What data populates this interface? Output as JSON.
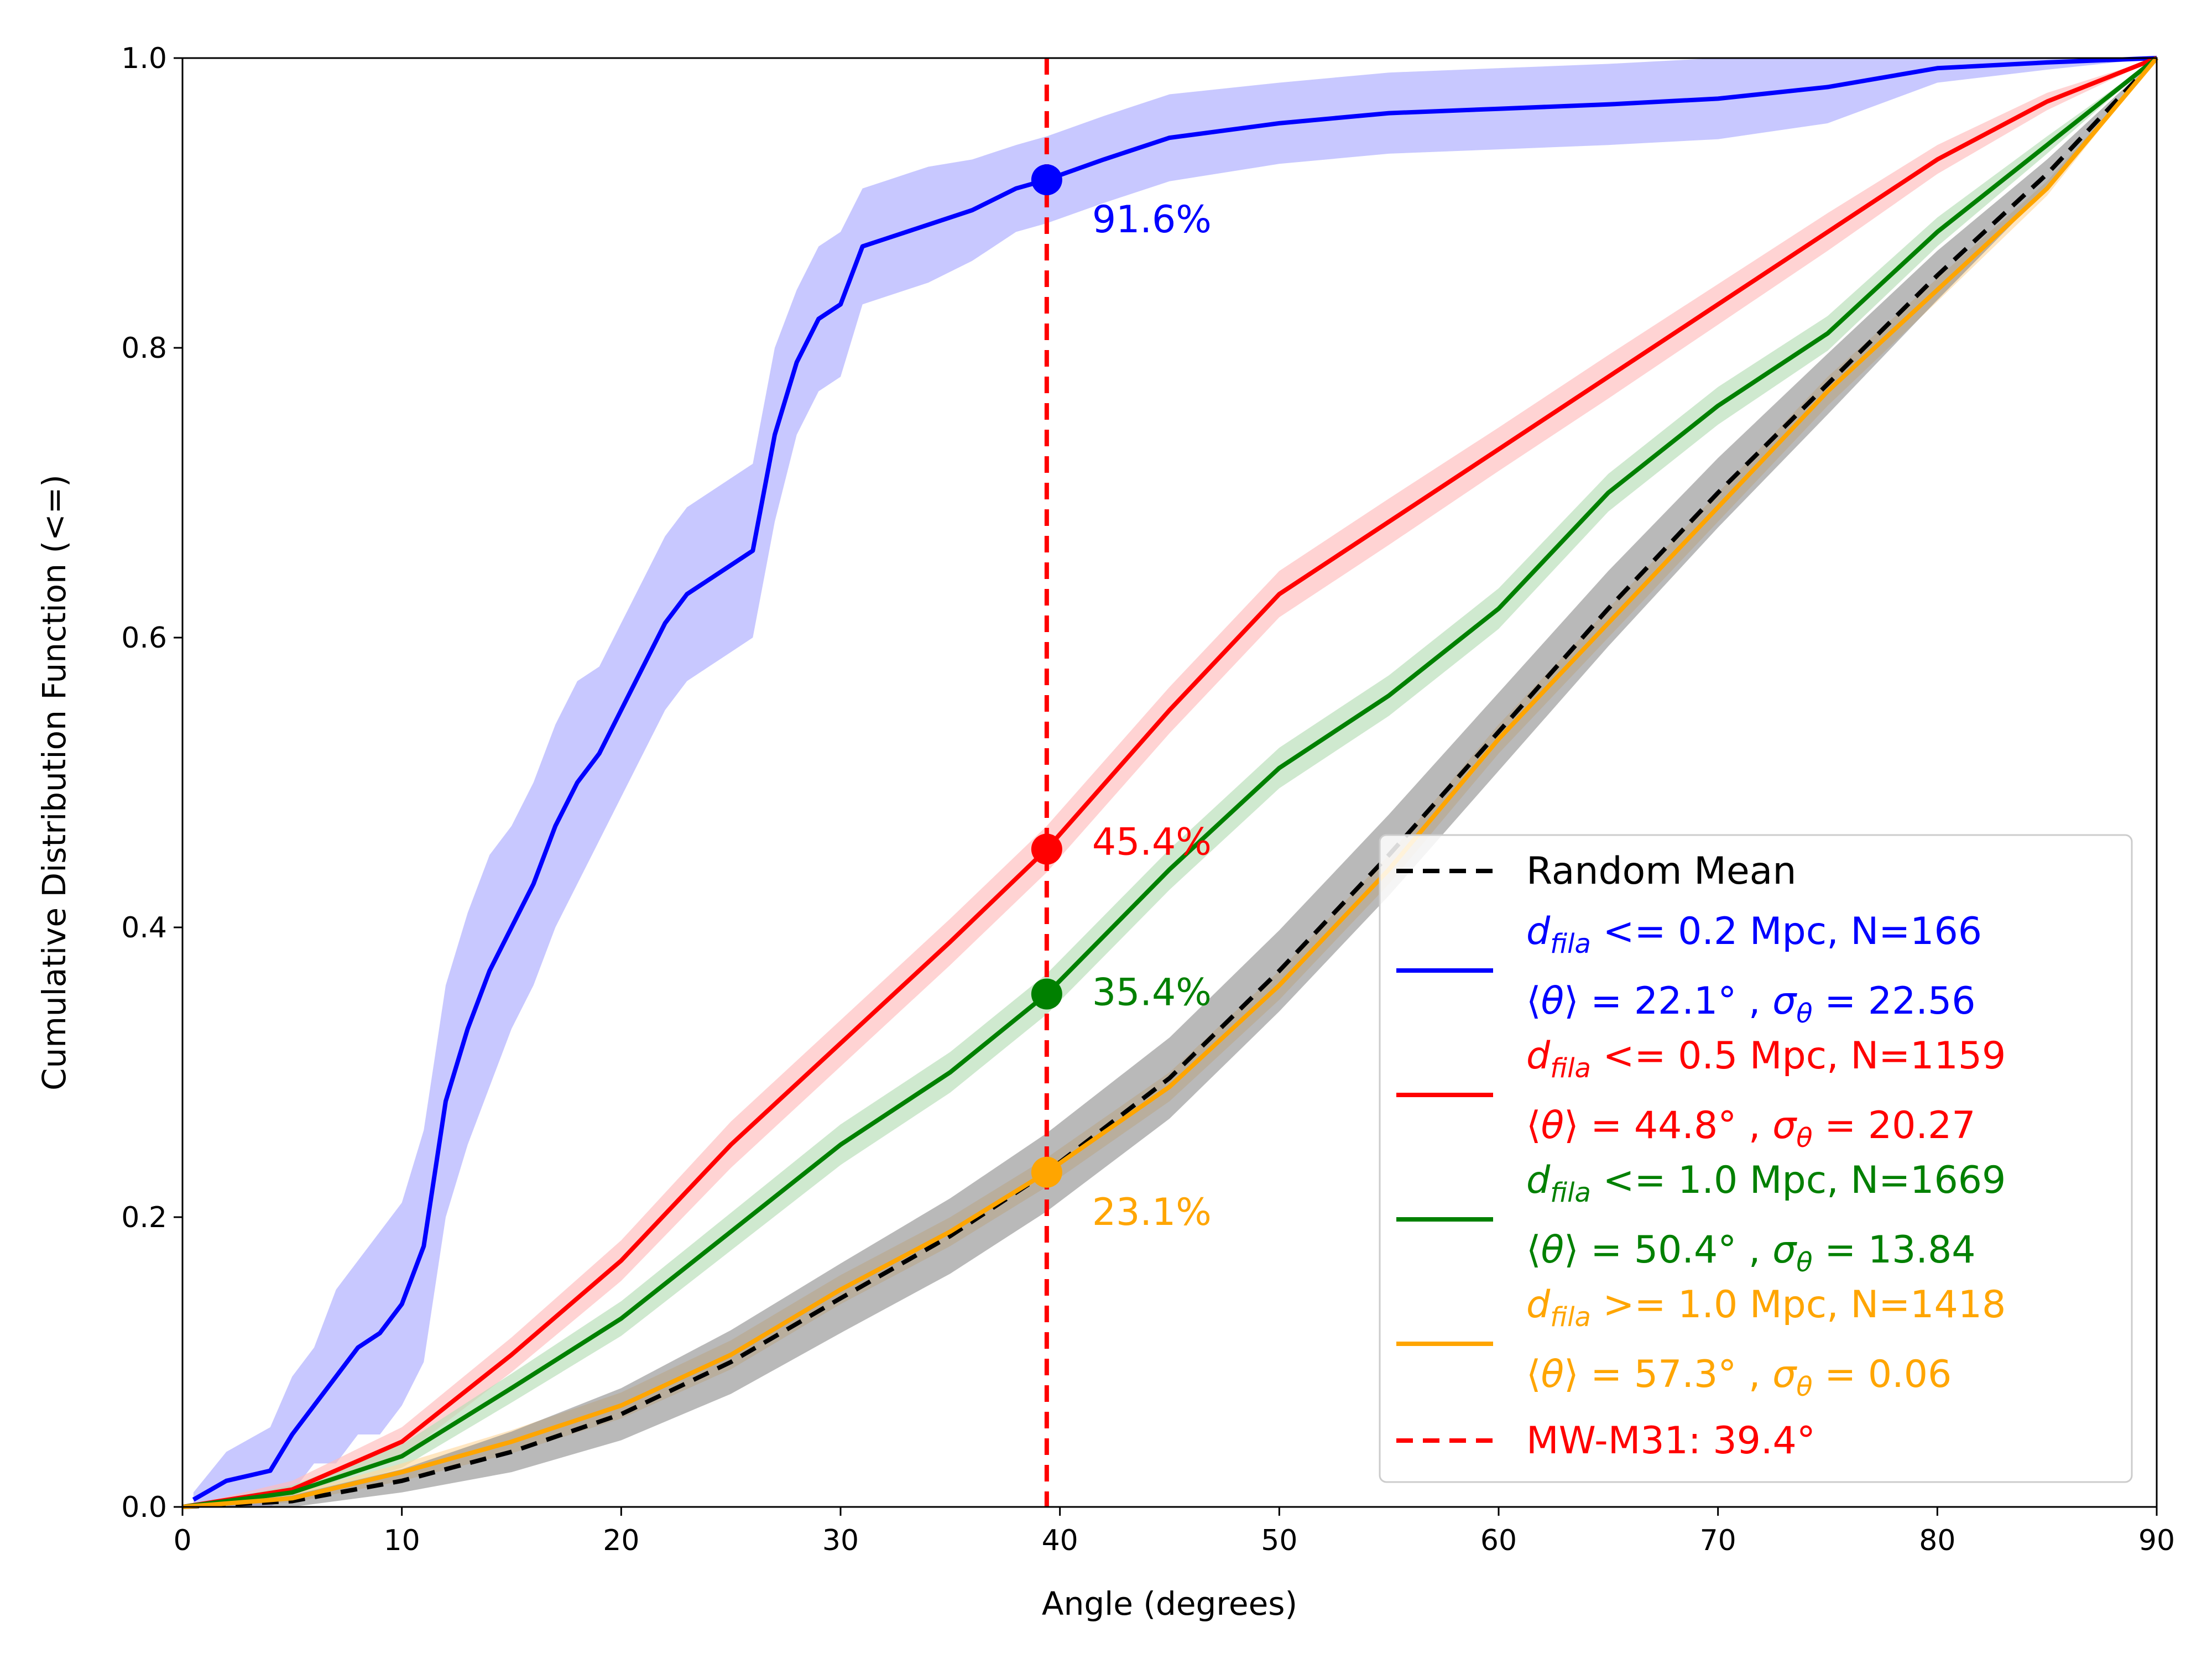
{
  "chart_data": {
    "type": "line",
    "title": "",
    "xlabel": "Angle (degrees)",
    "ylabel": "Cumulative Distribution Function (<=)",
    "xlim": [
      0,
      90
    ],
    "ylim": [
      0,
      1
    ],
    "xticks": [
      0,
      10,
      20,
      30,
      40,
      50,
      60,
      70,
      80,
      90
    ],
    "xtick_labels": [
      "0",
      "10",
      "20",
      "30",
      "40",
      "50",
      "60",
      "70",
      "80",
      "90"
    ],
    "yticks": [
      0,
      0.2,
      0.4,
      0.6,
      0.8,
      1.0
    ],
    "ytick_labels": [
      "0.0",
      "0.2",
      "0.4",
      "0.6",
      "0.8",
      "1.0"
    ],
    "grid": false,
    "legend_position": "lower-right",
    "colors": {
      "blue": "#0000ff",
      "red": "#ff0000",
      "green": "#008000",
      "orange": "#ffa500",
      "black": "#000000",
      "gray": "#808080"
    },
    "marker_angle": 39.4,
    "series": [
      {
        "id": "s_blue",
        "color": "#0000ff",
        "band_color": "#aaaaff",
        "legend_line1_pre": "",
        "legend_sym": "d",
        "legend_sub": "fila",
        "legend_line1_post": " <= 0.2 Mpc, N=166",
        "legend_mean": "22.1",
        "legend_sigma": "22.56",
        "annotation": "91.6%",
        "value_at_marker": 0.916,
        "x": [
          0.5,
          2,
          4,
          5,
          6,
          7,
          8,
          9,
          10,
          11,
          12,
          13,
          14,
          15,
          16,
          17,
          18,
          19,
          20,
          21,
          22,
          23,
          24,
          25,
          26,
          27,
          28,
          29,
          30,
          31,
          32,
          34,
          36,
          38,
          39.4,
          42,
          45,
          50,
          55,
          60,
          65,
          70,
          75,
          80,
          85,
          90
        ],
        "y": [
          0.005,
          0.018,
          0.025,
          0.05,
          0.07,
          0.09,
          0.11,
          0.12,
          0.14,
          0.18,
          0.28,
          0.33,
          0.37,
          0.4,
          0.43,
          0.47,
          0.5,
          0.52,
          0.55,
          0.58,
          0.61,
          0.63,
          0.64,
          0.65,
          0.66,
          0.74,
          0.79,
          0.82,
          0.83,
          0.87,
          0.875,
          0.885,
          0.895,
          0.91,
          0.916,
          0.93,
          0.945,
          0.955,
          0.962,
          0.965,
          0.968,
          0.972,
          0.98,
          0.993,
          0.997,
          1.0
        ],
        "band": [
          0.005,
          0.02,
          0.03,
          0.04,
          0.04,
          0.06,
          0.06,
          0.07,
          0.07,
          0.08,
          0.08,
          0.08,
          0.08,
          0.07,
          0.07,
          0.07,
          0.07,
          0.06,
          0.06,
          0.06,
          0.06,
          0.06,
          0.06,
          0.06,
          0.06,
          0.06,
          0.05,
          0.05,
          0.05,
          0.04,
          0.04,
          0.04,
          0.035,
          0.03,
          0.03,
          0.03,
          0.03,
          0.028,
          0.028,
          0.028,
          0.028,
          0.028,
          0.025,
          0.01,
          0.005,
          0.0
        ]
      },
      {
        "id": "s_red",
        "color": "#ff0000",
        "band_color": "#ffbbbb",
        "legend_sym": "d",
        "legend_sub": "fila",
        "legend_line1_post": " <= 0.5 Mpc, N=1159",
        "legend_mean": "44.8",
        "legend_sigma": "20.27",
        "annotation": "45.4%",
        "value_at_marker": 0.454,
        "x": [
          0,
          5,
          10,
          15,
          20,
          25,
          30,
          35,
          39.4,
          45,
          50,
          55,
          60,
          65,
          70,
          75,
          80,
          85,
          90
        ],
        "y": [
          0.0,
          0.012,
          0.045,
          0.105,
          0.17,
          0.25,
          0.32,
          0.39,
          0.454,
          0.55,
          0.63,
          0.68,
          0.73,
          0.78,
          0.83,
          0.88,
          0.93,
          0.97,
          1.0
        ],
        "band": [
          0.0,
          0.006,
          0.01,
          0.012,
          0.014,
          0.016,
          0.016,
          0.016,
          0.016,
          0.016,
          0.016,
          0.016,
          0.015,
          0.015,
          0.014,
          0.013,
          0.01,
          0.006,
          0.0
        ]
      },
      {
        "id": "s_green",
        "color": "#008000",
        "band_color": "#b5ddb5",
        "legend_sym": "d",
        "legend_sub": "fila",
        "legend_line1_post": " <= 1.0 Mpc, N=1669",
        "legend_mean": "50.4",
        "legend_sigma": "13.84",
        "annotation": "35.4%",
        "value_at_marker": 0.354,
        "x": [
          0,
          5,
          10,
          15,
          20,
          25,
          30,
          35,
          39.4,
          45,
          50,
          55,
          60,
          65,
          70,
          75,
          80,
          85,
          90
        ],
        "y": [
          0.0,
          0.01,
          0.035,
          0.082,
          0.13,
          0.19,
          0.25,
          0.3,
          0.354,
          0.44,
          0.51,
          0.56,
          0.62,
          0.7,
          0.76,
          0.81,
          0.88,
          0.94,
          1.0
        ],
        "band": [
          0.0,
          0.005,
          0.008,
          0.01,
          0.012,
          0.013,
          0.014,
          0.014,
          0.014,
          0.014,
          0.014,
          0.014,
          0.014,
          0.013,
          0.013,
          0.012,
          0.01,
          0.006,
          0.0
        ]
      },
      {
        "id": "s_orange",
        "color": "#ffa500",
        "band_color": "#ffd9a0",
        "legend_sym": "d",
        "legend_sub": "fila",
        "legend_line1_post": " >= 1.0 Mpc, N=1418",
        "legend_mean": "57.3",
        "legend_sigma": "0.06",
        "annotation": "23.1%",
        "value_at_marker": 0.231,
        "x": [
          0,
          5,
          10,
          15,
          20,
          25,
          30,
          35,
          39.4,
          45,
          50,
          55,
          60,
          65,
          70,
          75,
          80,
          85,
          90
        ],
        "y": [
          0.0,
          0.006,
          0.024,
          0.045,
          0.07,
          0.105,
          0.15,
          0.19,
          0.231,
          0.29,
          0.36,
          0.44,
          0.53,
          0.61,
          0.69,
          0.77,
          0.84,
          0.91,
          1.0
        ],
        "band": [
          0.0,
          0.003,
          0.006,
          0.008,
          0.009,
          0.01,
          0.01,
          0.01,
          0.01,
          0.01,
          0.01,
          0.01,
          0.01,
          0.01,
          0.01,
          0.01,
          0.008,
          0.005,
          0.0
        ]
      }
    ],
    "random_mean": {
      "id": "s_random",
      "legend_label": "Random Mean",
      "x": [
        0,
        5,
        10,
        15,
        20,
        25,
        30,
        35,
        39.4,
        45,
        50,
        55,
        60,
        65,
        70,
        75,
        80,
        85,
        90
      ],
      "y": [
        0.0,
        0.004,
        0.018,
        0.038,
        0.064,
        0.1,
        0.144,
        0.187,
        0.231,
        0.296,
        0.37,
        0.45,
        0.535,
        0.62,
        0.7,
        0.775,
        0.85,
        0.92,
        1.0
      ],
      "envelope": [
        0.0,
        0.004,
        0.008,
        0.014,
        0.018,
        0.022,
        0.024,
        0.026,
        0.027,
        0.028,
        0.028,
        0.028,
        0.027,
        0.026,
        0.024,
        0.021,
        0.017,
        0.01,
        0.0
      ]
    },
    "marker_line": {
      "legend_label": "MW-M31: 39.4°",
      "color": "#ff0000"
    }
  }
}
